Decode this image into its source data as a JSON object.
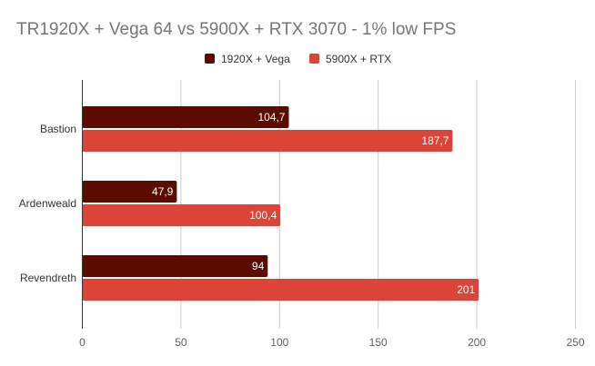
{
  "chart_data": {
    "type": "bar",
    "orientation": "horizontal",
    "title": "TR1920X + Vega 64 vs 5900X + RTX 3070 - 1% low FPS",
    "categories": [
      "Bastion",
      "Ardenweald",
      "Revendreth"
    ],
    "series": [
      {
        "name": "1920X + Vega",
        "color": "#5c0b00",
        "values": [
          104.7,
          47.9,
          94
        ],
        "labels": [
          "104,7",
          "47,9",
          "94"
        ]
      },
      {
        "name": "5900X + RTX",
        "color": "#dc4437",
        "values": [
          187.7,
          100.4,
          201
        ],
        "labels": [
          "187,7",
          "100,4",
          "201"
        ]
      }
    ],
    "xlim": [
      0,
      250
    ],
    "xticks": [
      0,
      50,
      100,
      150,
      200,
      250
    ],
    "xtick_labels": [
      "0",
      "50",
      "100",
      "150",
      "200",
      "250"
    ],
    "xlabel": "",
    "ylabel": "",
    "grid": true,
    "legend_position": "top-center",
    "gridline_color": "#cccccc",
    "axis_color": "#333333"
  }
}
